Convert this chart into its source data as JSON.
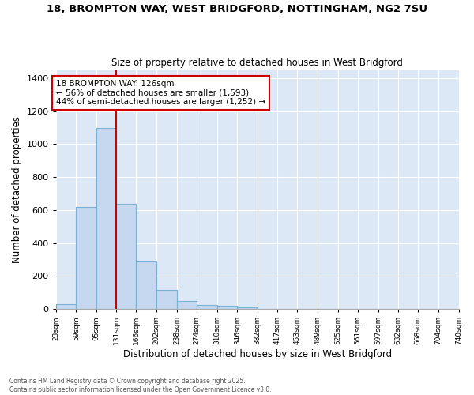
{
  "title_line1": "18, BROMPTON WAY, WEST BRIDGFORD, NOTTINGHAM, NG2 7SU",
  "title_line2": "Size of property relative to detached houses in West Bridgford",
  "xlabel": "Distribution of detached houses by size in West Bridgford",
  "ylabel": "Number of detached properties",
  "bar_color": "#c5d8f0",
  "bar_edge_color": "#7bafd4",
  "background_color": "#dce8f5",
  "fig_background_color": "#ffffff",
  "grid_color": "#ffffff",
  "annotation_text": "18 BROMPTON WAY: 126sqm\n← 56% of detached houses are smaller (1,593)\n44% of semi-detached houses are larger (1,252) →",
  "annotation_box_color": "#ffffff",
  "annotation_border_color": "#cc0000",
  "vline_color": "#cc0000",
  "vline_x": 131,
  "footnote_line1": "Contains HM Land Registry data © Crown copyright and database right 2025.",
  "footnote_line2": "Contains public sector information licensed under the Open Government Licence v3.0.",
  "bins": [
    23,
    59,
    95,
    131,
    166,
    202,
    238,
    274,
    310,
    346,
    382,
    417,
    453,
    489,
    525,
    561,
    597,
    632,
    668,
    704,
    740
  ],
  "counts": [
    30,
    620,
    1100,
    640,
    290,
    115,
    50,
    22,
    20,
    12,
    0,
    0,
    0,
    0,
    0,
    0,
    0,
    0,
    0,
    0
  ],
  "ylim": [
    0,
    1450
  ],
  "yticks": [
    0,
    200,
    400,
    600,
    800,
    1000,
    1200,
    1400
  ]
}
